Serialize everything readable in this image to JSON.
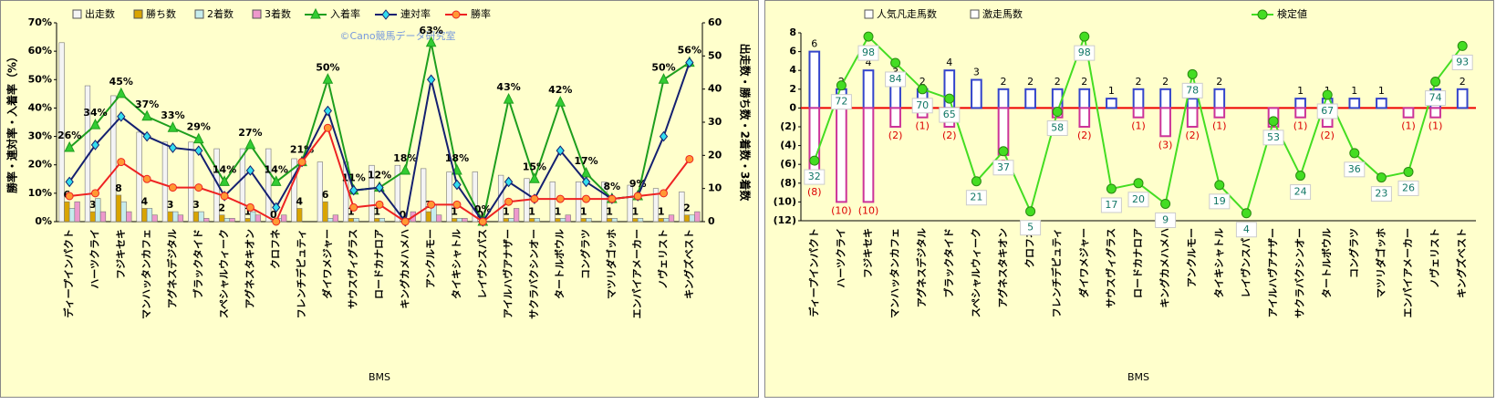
{
  "chart_data": [
    {
      "type": "combo",
      "categories": [
        "ディープインパクト",
        "ハーツクライ",
        "フジキセキ",
        "マンハッタンカフェ",
        "アグネスデジタル",
        "ブラックタイド",
        "スペシャルウィーク",
        "アグネスタキオン",
        "クロフネ",
        "フレンチデピュティ",
        "ダイワメジャー",
        "サウスヴィグラス",
        "ロードカナロア",
        "キングカメハメハ",
        "アンクルモー",
        "タイキシャトル",
        "レイヴンスパス",
        "アイルハヴアナザー",
        "サクラバクシンオー",
        "タートルボウル",
        "コングラツ",
        "マツリダゴッホ",
        "エンパイアメーカー",
        "ノヴェリスト",
        "キングズベスト"
      ],
      "xlabel": "BMS",
      "ylabel": "勝率・連対率・入着率（%）",
      "y2label": "出走数・勝ち数・2着数・3着数",
      "annotation": "©Cano競馬データ研究室",
      "ylim": [
        0,
        70
      ],
      "yticks": [
        {
          "value": 0,
          "label": "0%"
        },
        {
          "value": 10,
          "label": "10%"
        },
        {
          "value": 20,
          "label": "20%"
        },
        {
          "value": 30,
          "label": "30%"
        },
        {
          "value": 40,
          "label": "40%"
        },
        {
          "value": 50,
          "label": "50%"
        },
        {
          "value": 60,
          "label": "60%"
        },
        {
          "value": 70,
          "label": "70%"
        }
      ],
      "y2lim": [
        0,
        60
      ],
      "y2ticks": [
        0,
        10,
        20,
        30,
        40,
        50,
        60
      ],
      "series": [
        {
          "name": "出走数",
          "type": "bar",
          "axis": "y2",
          "color": "#f4f4f4",
          "values": [
            54,
            41,
            38,
            27,
            24,
            24,
            22,
            22,
            22,
            19,
            18,
            18,
            17,
            17,
            16,
            15,
            15,
            14,
            13,
            12,
            12,
            12,
            11,
            10,
            9
          ]
        },
        {
          "name": "勝ち数",
          "type": "bar",
          "axis": "y2",
          "color": "#d9a400",
          "labels": true,
          "values": [
            6,
            3,
            8,
            4,
            3,
            3,
            2,
            1,
            0,
            4,
            6,
            1,
            1,
            0,
            3,
            1,
            0,
            1,
            1,
            1,
            1,
            1,
            1,
            1,
            2
          ]
        },
        {
          "name": "2着数",
          "type": "bar",
          "axis": "y2",
          "color": "#c6ecec",
          "values": [
            4,
            7,
            6,
            4,
            3,
            3,
            1,
            3,
            1,
            0,
            1,
            1,
            1,
            1,
            5,
            1,
            0,
            1,
            1,
            1,
            1,
            1,
            1,
            1,
            2
          ]
        },
        {
          "name": "3着数",
          "type": "bar",
          "axis": "y2",
          "color": "#ee99cc",
          "values": [
            6,
            3,
            3,
            2,
            2,
            1,
            1,
            2,
            2,
            0,
            2,
            0,
            0,
            3,
            2,
            1,
            0,
            4,
            0,
            2,
            0,
            0,
            0,
            2,
            3
          ]
        },
        {
          "name": "入着率",
          "type": "line",
          "color": "#1e9e1e",
          "marker": "triangle",
          "marker_color": "#33cc33",
          "values": [
            26,
            34,
            45,
            37,
            33,
            29,
            14,
            27,
            14,
            21,
            50,
            11,
            12,
            18,
            63,
            18,
            0,
            43,
            15,
            42,
            17,
            8,
            9,
            50,
            56
          ],
          "value_labels": [
            "26%",
            "34%",
            "45%",
            "37%",
            "33%",
            "29%",
            "14%",
            "27%",
            "14%",
            "21%",
            "50%",
            "11%",
            "12%",
            "18%",
            "63%",
            "18%",
            "0%",
            "43%",
            "15%",
            "42%",
            "17%",
            "8%",
            "9%",
            "50%",
            "56%"
          ]
        },
        {
          "name": "連対率",
          "type": "line",
          "color": "#142070",
          "marker": "diamond",
          "marker_color": "#33ddee",
          "values": [
            14,
            27,
            37,
            30,
            26,
            25,
            9,
            18,
            5,
            21,
            39,
            11,
            12,
            0,
            50,
            13,
            0,
            14,
            8,
            25,
            14,
            8,
            9,
            30,
            56
          ]
        },
        {
          "name": "勝率",
          "type": "line",
          "color": "#ee2222",
          "marker": "circle",
          "marker_color": "#ff9933",
          "values": [
            9,
            10,
            21,
            15,
            12,
            12,
            9,
            5,
            0,
            21,
            33,
            5,
            6,
            0,
            6,
            6,
            0,
            7,
            8,
            8,
            8,
            8,
            9,
            10,
            22
          ]
        }
      ]
    },
    {
      "type": "combo",
      "categories": [
        "ディープインパクト",
        "ハーツクライ",
        "フジキセキ",
        "マンハッタンカフェ",
        "アグネスデジタル",
        "ブラックタイド",
        "スペシャルウィーク",
        "アグネスタキオン",
        "クロフネ",
        "フレンチデピュティ",
        "ダイワメジャー",
        "サウスヴィグラス",
        "ロードカナロア",
        "キングカメハメハ",
        "アンクルモー",
        "タイキシャトル",
        "レイヴンスパス",
        "アイルハヴアナザー",
        "サクラバクシンオー",
        "タートルボウル",
        "コングラツ",
        "マツリダゴッホ",
        "エンパイアメーカー",
        "ノヴェリスト",
        "キングズベスト"
      ],
      "xlabel": "BMS",
      "ylim": [
        -12,
        8
      ],
      "yticks": [
        {
          "value": -12,
          "label": "(12)"
        },
        {
          "value": -10,
          "label": "(10)"
        },
        {
          "value": -8,
          "label": "(8)"
        },
        {
          "value": -6,
          "label": "(6)"
        },
        {
          "value": -4,
          "label": "(4)"
        },
        {
          "value": -2,
          "label": "(2)"
        },
        0,
        2,
        4,
        6,
        8
      ],
      "y2lim": [
        0,
        100
      ],
      "series": [
        {
          "name": "人気凡走馬数",
          "type": "bar",
          "color": "#3344cc",
          "values": [
            6,
            2,
            4,
            3,
            2,
            4,
            3,
            2,
            2,
            2,
            2,
            1,
            2,
            2,
            1,
            2,
            null,
            null,
            1,
            1,
            1,
            1,
            null,
            2,
            2
          ]
        },
        {
          "name": "激走馬数",
          "type": "bar",
          "color": "#cc3399",
          "values": [
            -8,
            -10,
            -10,
            -2,
            -1,
            -2,
            null,
            -5,
            null,
            -1,
            -2,
            null,
            -1,
            -3,
            -2,
            -1,
            null,
            -2,
            -1,
            -2,
            null,
            null,
            -1,
            -1,
            null
          ],
          "value_labels": [
            "(8)",
            "(10)",
            "(10)",
            "(2)",
            "(1)",
            "(2)",
            null,
            "(5)",
            null,
            "(1)",
            "(2)",
            null,
            "(1)",
            "(3)",
            "(2)",
            "(1)",
            null,
            "(2)",
            "(1)",
            "(2)",
            null,
            null,
            "(1)",
            "(1)",
            null
          ]
        },
        {
          "name": "検定値",
          "type": "line",
          "axis": "y2",
          "color": "#44dd22",
          "values": [
            32,
            72,
            98,
            84,
            70,
            65,
            21,
            37,
            5,
            58,
            98,
            17,
            20,
            9,
            78,
            19,
            4,
            53,
            24,
            67,
            36,
            23,
            26,
            74,
            93
          ]
        }
      ]
    }
  ]
}
